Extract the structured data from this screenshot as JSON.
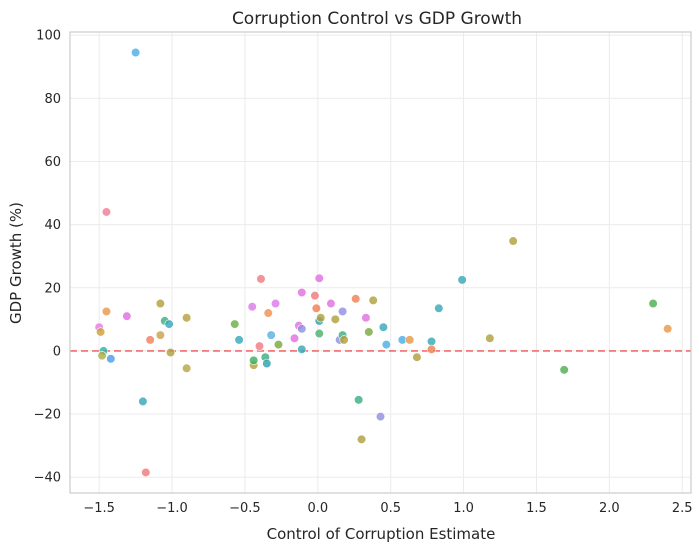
{
  "chart_data": {
    "type": "scatter",
    "title": "Corruption Control vs GDP Growth",
    "xlabel": "Control of Corruption Estimate",
    "ylabel": "GDP Growth (%)",
    "xlim": [
      -1.7,
      2.56
    ],
    "ylim": [
      -45,
      101
    ],
    "xticks": [
      -1.5,
      -1.0,
      -0.5,
      0.0,
      0.5,
      1.0,
      1.5,
      2.0,
      2.5
    ],
    "xtick_labels": [
      "−1.5",
      "−1.0",
      "−0.5",
      "0.0",
      "0.5",
      "1.0",
      "1.5",
      "2.0",
      "2.5"
    ],
    "yticks": [
      -40,
      -20,
      0,
      20,
      40,
      60,
      80,
      100
    ],
    "ytick_labels": [
      "−40",
      "−20",
      "0",
      "20",
      "40",
      "60",
      "80",
      "100"
    ],
    "grid": true,
    "reference_line": {
      "y": 0,
      "style": "dashed",
      "color": "#f26d6d"
    },
    "colors": {
      "background": "#ffffff",
      "grid": "#ebebeb",
      "spine": "#cccccc",
      "text": "#262626"
    },
    "points": [
      {
        "x": -1.25,
        "y": 94.5,
        "color": "#4daee6"
      },
      {
        "x": -1.45,
        "y": 44.0,
        "color": "#f27c96"
      },
      {
        "x": -1.5,
        "y": 7.5,
        "color": "#e879e8"
      },
      {
        "x": -1.49,
        "y": 6.0,
        "color": "#c9a23a"
      },
      {
        "x": -1.45,
        "y": 12.5,
        "color": "#e8984a"
      },
      {
        "x": -1.47,
        "y": 0.0,
        "color": "#2fb3a8"
      },
      {
        "x": -1.48,
        "y": -1.5,
        "color": "#b0ad45"
      },
      {
        "x": -1.42,
        "y": -2.5,
        "color": "#4d9ee6"
      },
      {
        "x": -1.31,
        "y": 11.0,
        "color": "#e06ee0"
      },
      {
        "x": -1.2,
        "y": -16.0,
        "color": "#38a8b8"
      },
      {
        "x": -1.18,
        "y": -38.5,
        "color": "#f07a7a"
      },
      {
        "x": -1.15,
        "y": 3.5,
        "color": "#f08060"
      },
      {
        "x": -1.08,
        "y": 15.0,
        "color": "#b0a040"
      },
      {
        "x": -1.08,
        "y": 5.0,
        "color": "#c9a050"
      },
      {
        "x": -1.05,
        "y": 9.5,
        "color": "#3cb080"
      },
      {
        "x": -1.02,
        "y": 8.5,
        "color": "#38a8b8"
      },
      {
        "x": -1.01,
        "y": -0.5,
        "color": "#b0a040"
      },
      {
        "x": -0.9,
        "y": 10.5,
        "color": "#b8a040"
      },
      {
        "x": -0.9,
        "y": -5.5,
        "color": "#b8a545"
      },
      {
        "x": -0.57,
        "y": 8.5,
        "color": "#6ab045"
      },
      {
        "x": -0.54,
        "y": 3.5,
        "color": "#38a8b8"
      },
      {
        "x": -0.45,
        "y": 14.0,
        "color": "#d97ae8"
      },
      {
        "x": -0.44,
        "y": -4.5,
        "color": "#b8a040"
      },
      {
        "x": -0.44,
        "y": -3.0,
        "color": "#3cb060"
      },
      {
        "x": -0.4,
        "y": 1.5,
        "color": "#f07a80"
      },
      {
        "x": -0.39,
        "y": 22.8,
        "color": "#f07a80"
      },
      {
        "x": -0.36,
        "y": -2.0,
        "color": "#3cb080"
      },
      {
        "x": -0.34,
        "y": 12.0,
        "color": "#f09050"
      },
      {
        "x": -0.35,
        "y": -4.0,
        "color": "#2fa0b0"
      },
      {
        "x": -0.32,
        "y": 5.0,
        "color": "#5ab0e0"
      },
      {
        "x": -0.29,
        "y": 15.0,
        "color": "#d97ae8"
      },
      {
        "x": -0.27,
        "y": 2.0,
        "color": "#7aa840"
      },
      {
        "x": -0.16,
        "y": 4.0,
        "color": "#e070e0"
      },
      {
        "x": -0.13,
        "y": 8.0,
        "color": "#e070e0"
      },
      {
        "x": -0.11,
        "y": 7.0,
        "color": "#9090e0"
      },
      {
        "x": -0.11,
        "y": 0.5,
        "color": "#38a8b8"
      },
      {
        "x": -0.11,
        "y": 18.5,
        "color": "#e070e0"
      },
      {
        "x": -0.02,
        "y": 17.5,
        "color": "#f07a7a"
      },
      {
        "x": -0.01,
        "y": 13.5,
        "color": "#f08050"
      },
      {
        "x": 0.01,
        "y": 23.0,
        "color": "#e070e0"
      },
      {
        "x": 0.01,
        "y": 9.5,
        "color": "#2fa0b0"
      },
      {
        "x": 0.02,
        "y": 10.5,
        "color": "#b0a040"
      },
      {
        "x": 0.01,
        "y": 5.5,
        "color": "#4db070"
      },
      {
        "x": 0.09,
        "y": 15.0,
        "color": "#e070e0"
      },
      {
        "x": 0.12,
        "y": 10.0,
        "color": "#b0a040"
      },
      {
        "x": 0.15,
        "y": 3.5,
        "color": "#9090e0"
      },
      {
        "x": 0.17,
        "y": 12.5,
        "color": "#9090e0"
      },
      {
        "x": 0.17,
        "y": 5.0,
        "color": "#3cb080"
      },
      {
        "x": 0.18,
        "y": 3.5,
        "color": "#b0a040"
      },
      {
        "x": 0.26,
        "y": 16.5,
        "color": "#f08050"
      },
      {
        "x": 0.28,
        "y": -15.5,
        "color": "#3cb080"
      },
      {
        "x": 0.3,
        "y": -28.0,
        "color": "#b0a040"
      },
      {
        "x": 0.33,
        "y": 10.5,
        "color": "#e070e0"
      },
      {
        "x": 0.35,
        "y": 6.0,
        "color": "#7aa840"
      },
      {
        "x": 0.38,
        "y": 16.0,
        "color": "#b0a040"
      },
      {
        "x": 0.43,
        "y": -20.8,
        "color": "#9090e0"
      },
      {
        "x": 0.45,
        "y": 7.5,
        "color": "#38a8b8"
      },
      {
        "x": 0.47,
        "y": 2.0,
        "color": "#4daee6"
      },
      {
        "x": 0.58,
        "y": 3.5,
        "color": "#4daee6"
      },
      {
        "x": 0.63,
        "y": 3.5,
        "color": "#e8984a"
      },
      {
        "x": 0.68,
        "y": -2.0,
        "color": "#b0a040"
      },
      {
        "x": 0.78,
        "y": 3.0,
        "color": "#38a8b8"
      },
      {
        "x": 0.78,
        "y": 0.5,
        "color": "#f08050"
      },
      {
        "x": 0.83,
        "y": 13.5,
        "color": "#38a8b8"
      },
      {
        "x": 0.99,
        "y": 22.5,
        "color": "#38a8b8"
      },
      {
        "x": 1.18,
        "y": 4.0,
        "color": "#b0a040"
      },
      {
        "x": 1.34,
        "y": 34.8,
        "color": "#b0a040"
      },
      {
        "x": 1.69,
        "y": -6.0,
        "color": "#4db050"
      },
      {
        "x": 2.3,
        "y": 15.0,
        "color": "#4db050"
      },
      {
        "x": 2.4,
        "y": 7.0,
        "color": "#e8984a"
      }
    ]
  }
}
